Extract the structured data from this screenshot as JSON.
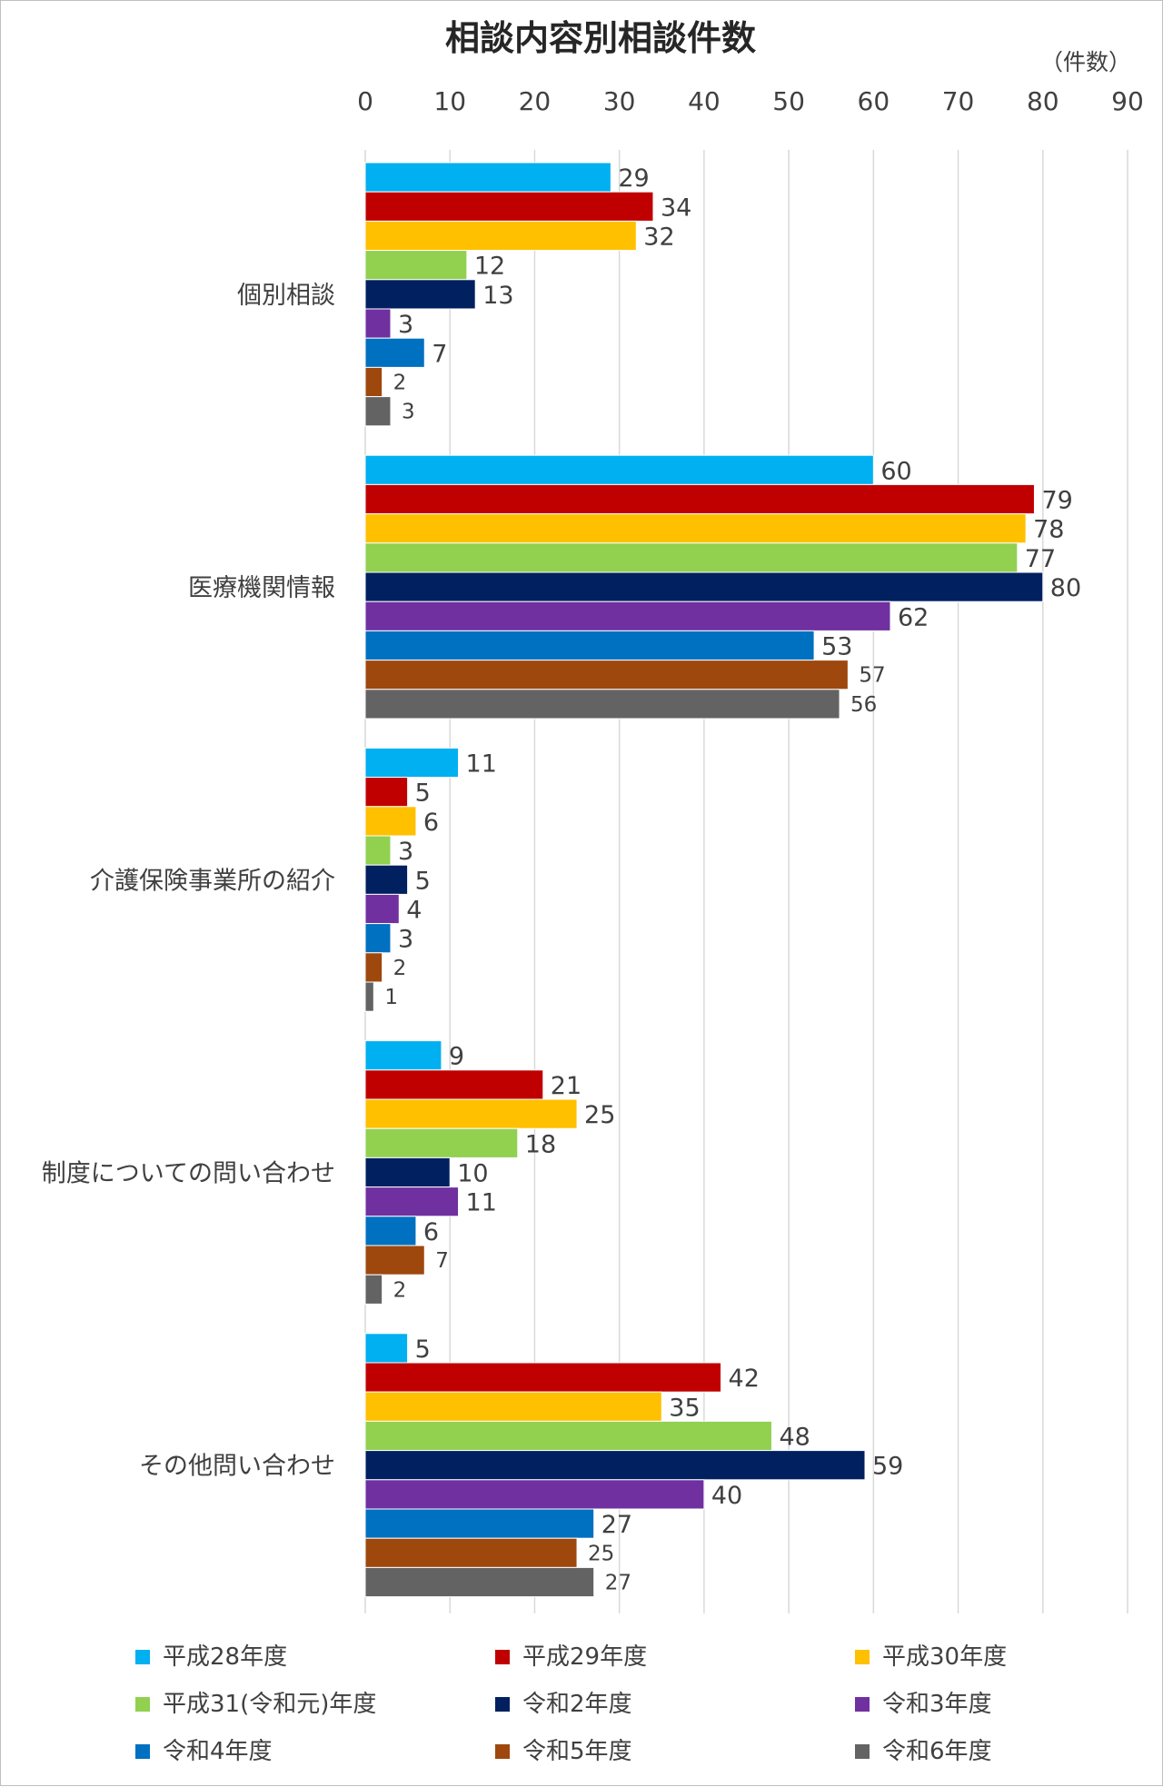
{
  "chart_data": {
    "type": "bar",
    "orientation": "horizontal",
    "title": "相談内容別相談件数",
    "unit_label": "（件数）",
    "xlim": [
      0,
      90
    ],
    "xticks": [
      0,
      10,
      20,
      30,
      40,
      50,
      60,
      70,
      80,
      90
    ],
    "grid": true,
    "legend_position": "bottom",
    "categories": [
      "個別相談",
      "医療機関情報",
      "介護保険事業所の紹介",
      "制度についての問い合わせ",
      "その他問い合わせ"
    ],
    "series": [
      {
        "name": "平成28年度",
        "color": "#00b0f0",
        "values": [
          29,
          60,
          11,
          9,
          5
        ]
      },
      {
        "name": "平成29年度",
        "color": "#c00000",
        "values": [
          34,
          79,
          5,
          21,
          42
        ]
      },
      {
        "name": "平成30年度",
        "color": "#ffc000",
        "values": [
          32,
          78,
          6,
          25,
          35
        ]
      },
      {
        "name": "平成31(令和元)年度",
        "color": "#92d050",
        "values": [
          12,
          77,
          3,
          18,
          48
        ]
      },
      {
        "name": "令和2年度",
        "color": "#002060",
        "values": [
          13,
          80,
          5,
          10,
          59
        ]
      },
      {
        "name": "令和3年度",
        "color": "#7030a0",
        "values": [
          3,
          62,
          4,
          11,
          40
        ]
      },
      {
        "name": "令和4年度",
        "color": "#0070c0",
        "values": [
          7,
          53,
          3,
          6,
          27
        ]
      },
      {
        "name": "令和5年度",
        "color": "#9e480e",
        "values": [
          2,
          57,
          2,
          7,
          25
        ]
      },
      {
        "name": "令和6年度",
        "color": "#636363",
        "values": [
          3,
          56,
          1,
          2,
          27
        ]
      }
    ]
  }
}
